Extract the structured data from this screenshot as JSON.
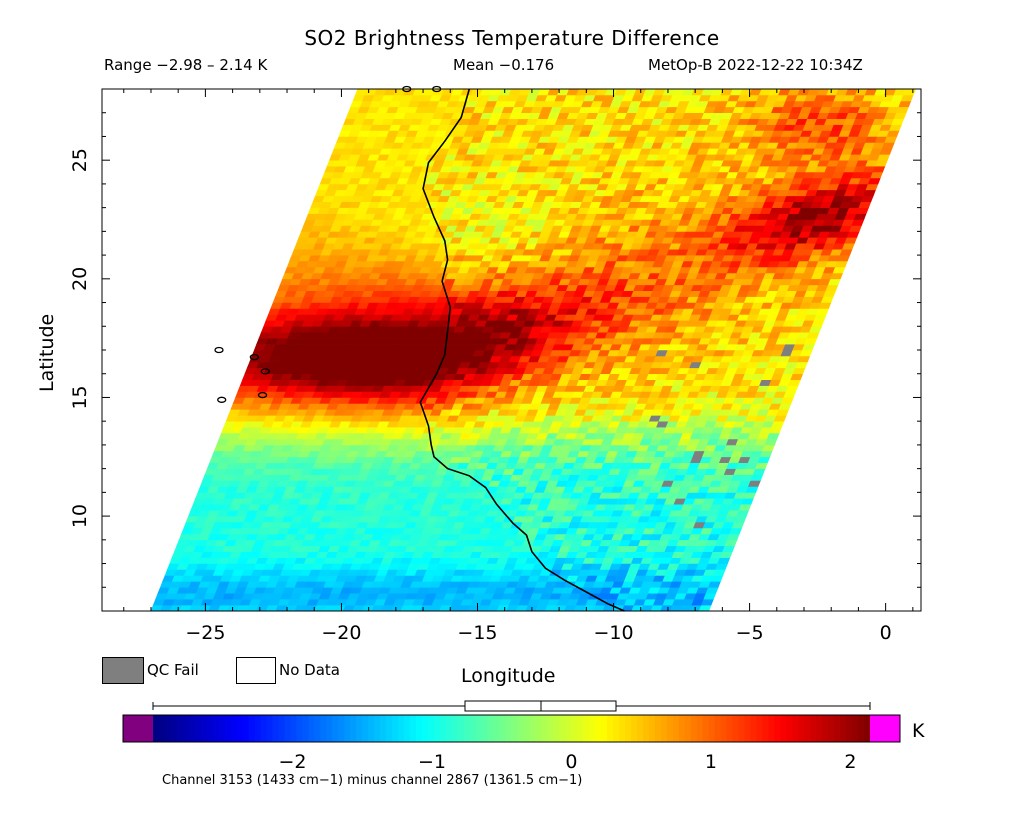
{
  "header": {
    "title": "SO2 Brightness Temperature Difference",
    "range": "Range −2.98 – 2.14 K",
    "mean": "Mean −0.176",
    "satellite_time": "MetOp-B 2022-12-22 10:34Z"
  },
  "axes": {
    "xlabel": "Longitude",
    "ylabel": "Latitude",
    "x_ticks": [
      "−25",
      "−20",
      "−15",
      "−10",
      "−5",
      "0"
    ],
    "y_ticks": [
      "10",
      "15",
      "20",
      "25"
    ]
  },
  "legend": {
    "qc_fail_label": "QC Fail",
    "qc_fail_color": "#7f7f7f",
    "no_data_label": "No Data",
    "no_data_color": "#ffffff"
  },
  "colorbar": {
    "unit": "K",
    "ticks": [
      "−2",
      "−1",
      "0",
      "1",
      "2"
    ],
    "under_color": "#800080",
    "over_color": "#ff00ff",
    "palette": "jet",
    "footnote": "Channel 3153 (1433 cm−1) minus channel 2867 (1361.5 cm−1)"
  },
  "chart_data": {
    "type": "heatmap",
    "title": "SO2 Brightness Temperature Difference",
    "xlabel": "Longitude",
    "ylabel": "Latitude",
    "xlim": [
      -28.8,
      1.3
    ],
    "ylim": [
      6,
      28
    ],
    "value_range": [
      -2.98,
      2.14
    ],
    "mean": -0.176,
    "color_range": [
      -3,
      2.14
    ],
    "unit": "K",
    "swath": {
      "left_edge": [
        [
          -27.0,
          6.0
        ],
        [
          -19.4,
          28.0
        ]
      ],
      "right_edge": [
        [
          -6.5,
          6.0
        ],
        [
          1.1,
          28.0
        ]
      ]
    },
    "features": [
      {
        "name": "SO2 plume",
        "lat": 16.5,
        "lon_range": [
          -25,
          -10
        ],
        "peak_k": 2.1
      },
      {
        "name": "northeast band",
        "lat_range": [
          20,
          27
        ],
        "lon_range": [
          -8,
          -2
        ],
        "peak_k": 1.8
      }
    ],
    "coastline": [
      [
        -15.3,
        28.0
      ],
      [
        -15.6,
        26.8
      ],
      [
        -16.2,
        25.8
      ],
      [
        -16.8,
        24.9
      ],
      [
        -17.0,
        23.8
      ],
      [
        -16.6,
        22.6
      ],
      [
        -16.2,
        21.6
      ],
      [
        -16.1,
        20.8
      ],
      [
        -16.3,
        19.9
      ],
      [
        -16.0,
        18.8
      ],
      [
        -16.1,
        17.8
      ],
      [
        -16.2,
        16.8
      ],
      [
        -16.5,
        16.0
      ],
      [
        -17.1,
        14.8
      ],
      [
        -16.8,
        13.8
      ],
      [
        -16.7,
        13.0
      ],
      [
        -16.6,
        12.5
      ],
      [
        -16.1,
        12.0
      ],
      [
        -15.3,
        11.7
      ],
      [
        -14.7,
        11.2
      ],
      [
        -14.3,
        10.5
      ],
      [
        -13.7,
        9.7
      ],
      [
        -13.2,
        9.2
      ],
      [
        -13.0,
        8.5
      ],
      [
        -12.5,
        7.8
      ],
      [
        -11.8,
        7.3
      ],
      [
        -11.0,
        6.8
      ],
      [
        -10.2,
        6.3
      ],
      [
        -9.6,
        6.0
      ]
    ]
  }
}
